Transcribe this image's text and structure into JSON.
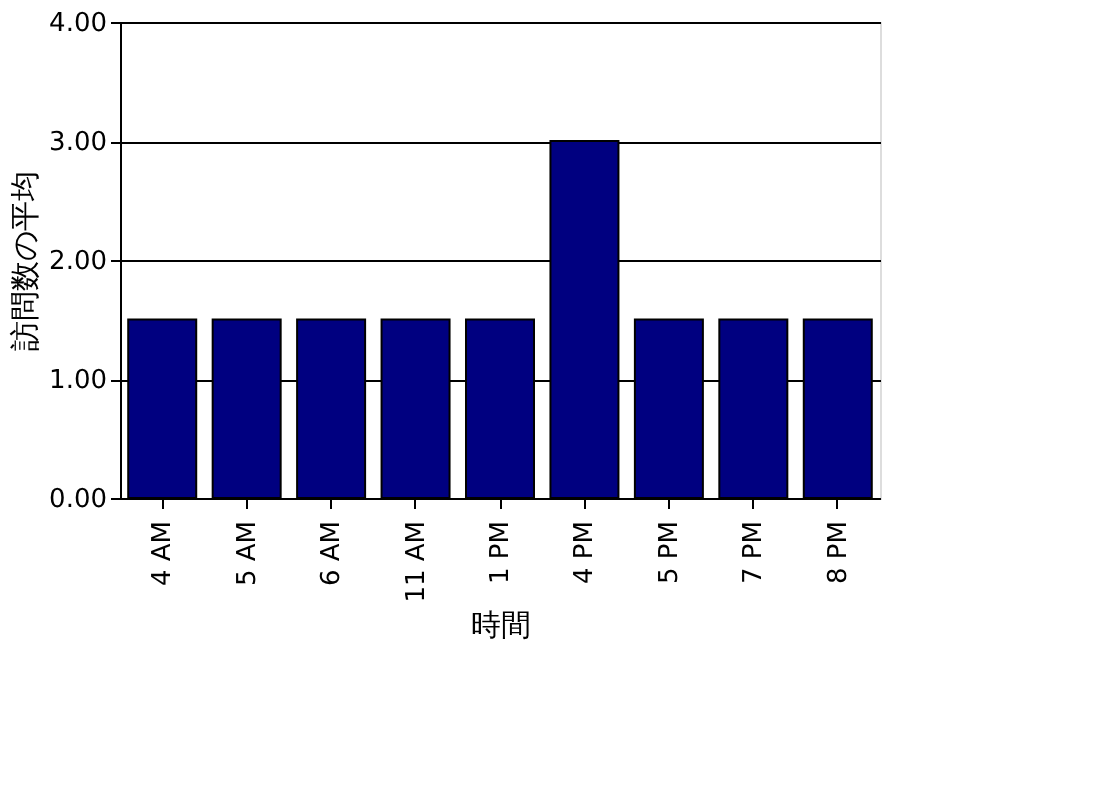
{
  "chart_data": {
    "type": "bar",
    "xlabel": "時間",
    "ylabel": "訪問数の平均",
    "categories": [
      "4 AM",
      "5 AM",
      "6 AM",
      "11 AM",
      "1 PM",
      "4 PM",
      "5 PM",
      "7 PM",
      "8 PM"
    ],
    "values": [
      1.5,
      1.5,
      1.5,
      1.5,
      1.5,
      3.0,
      1.5,
      1.5,
      1.5
    ],
    "color": "#000080",
    "ylim": [
      0,
      4
    ],
    "yticks": [
      {
        "value": 0,
        "label": "0.00"
      },
      {
        "value": 1,
        "label": "1.00"
      },
      {
        "value": 2,
        "label": "2.00"
      },
      {
        "value": 3,
        "label": "3.00"
      },
      {
        "value": 4,
        "label": "4.00"
      }
    ],
    "grid": "y"
  }
}
